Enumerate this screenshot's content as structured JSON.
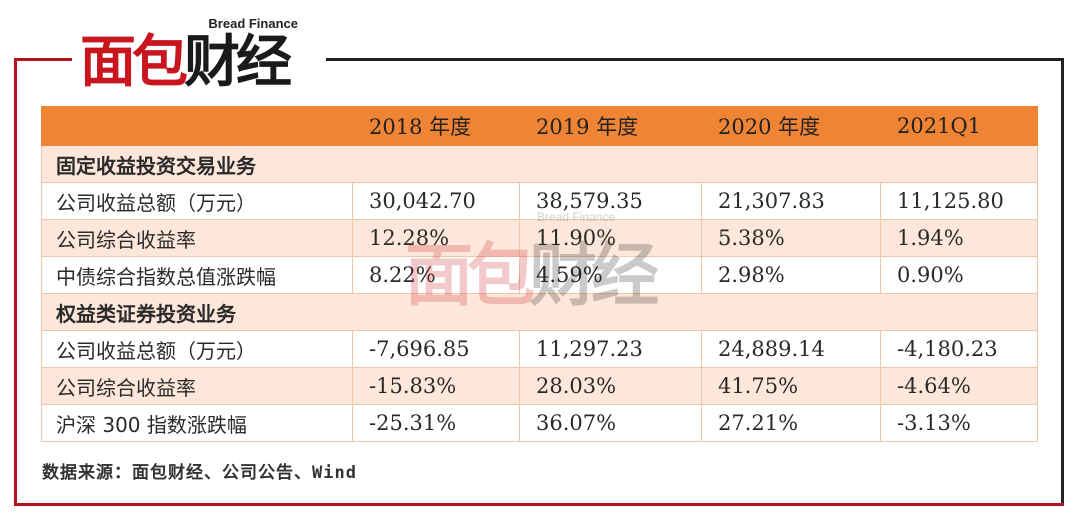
{
  "logo": {
    "en": "Bread Finance",
    "cn_red": "面包",
    "cn_dark": "财经"
  },
  "watermark": {
    "en": "Bread Finance",
    "cn_red": "面包",
    "cn_dark": "财经"
  },
  "table": {
    "headers": [
      "",
      "2018 年度",
      "2019 年度",
      "2020 年度",
      "2021Q1"
    ],
    "sections": [
      {
        "title": "固定收益投资交易业务",
        "rows": [
          {
            "label": "公司收益总额（万元）",
            "values": [
              "30,042.70",
              "38,579.35",
              "21,307.83",
              "11,125.80"
            ]
          },
          {
            "label": "公司综合收益率",
            "values": [
              "12.28%",
              "11.90%",
              "5.38%",
              "1.94%"
            ]
          },
          {
            "label": "中债综合指数总值涨跌幅",
            "values": [
              "8.22%",
              "4.59%",
              "2.98%",
              "0.90%"
            ]
          }
        ]
      },
      {
        "title": "权益类证券投资业务",
        "rows": [
          {
            "label": "公司收益总额（万元）",
            "values": [
              "-7,696.85",
              "11,297.23",
              "24,889.14",
              "-4,180.23"
            ]
          },
          {
            "label": "公司综合收益率",
            "values": [
              "-15.83%",
              "28.03%",
              "41.75%",
              "-4.64%"
            ]
          },
          {
            "label": "沪深 300 指数涨跌幅",
            "values": [
              "-25.31%",
              "36.07%",
              "27.21%",
              "-3.13%"
            ]
          }
        ]
      }
    ]
  },
  "source": "数据来源：面包财经、公司公告、Wind",
  "colors": {
    "header_bg": "#ef8435",
    "band_bg": "#fde7da",
    "brand_red": "#c8151e"
  }
}
